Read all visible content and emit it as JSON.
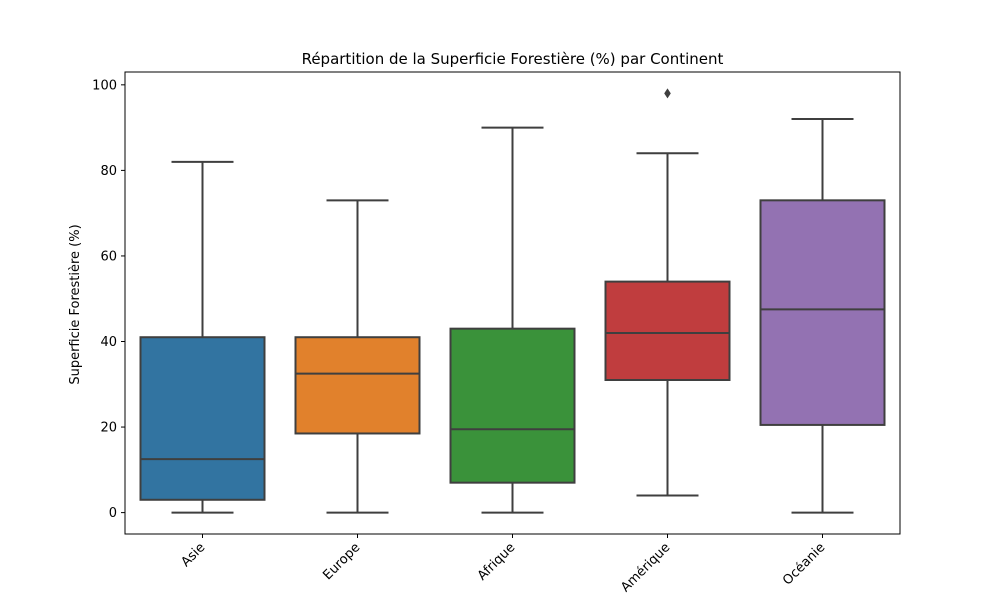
{
  "chart_data": {
    "type": "box",
    "title": "Répartition de la Superficie Forestière (%) par Continent",
    "xlabel": "",
    "ylabel": "Superficie Forestière (%)",
    "ylim": [
      -5,
      103
    ],
    "yticks": [
      0,
      20,
      40,
      60,
      80,
      100
    ],
    "grid": false,
    "categories": [
      "Asie",
      "Europe",
      "Afrique",
      "Amérique",
      "Océanie"
    ],
    "boxes": [
      {
        "category": "Asie",
        "whisker_low": 0,
        "q1": 3,
        "median": 12.5,
        "q3": 41,
        "whisker_high": 82,
        "outliers": [],
        "color": "#3274a1"
      },
      {
        "category": "Europe",
        "whisker_low": 0,
        "q1": 18.5,
        "median": 32.5,
        "q3": 41,
        "whisker_high": 73,
        "outliers": [],
        "color": "#e1812c"
      },
      {
        "category": "Afrique",
        "whisker_low": 0,
        "q1": 7,
        "median": 19.5,
        "q3": 43,
        "whisker_high": 90,
        "outliers": [],
        "color": "#3a923a"
      },
      {
        "category": "Amérique",
        "whisker_low": 4,
        "q1": 31,
        "median": 42,
        "q3": 54,
        "whisker_high": 84,
        "outliers": [
          98
        ],
        "color": "#c03d3e"
      },
      {
        "category": "Océanie",
        "whisker_low": 0,
        "q1": 20.5,
        "median": 47.5,
        "q3": 73,
        "whisker_high": 92,
        "outliers": [],
        "color": "#9372b2"
      }
    ]
  }
}
